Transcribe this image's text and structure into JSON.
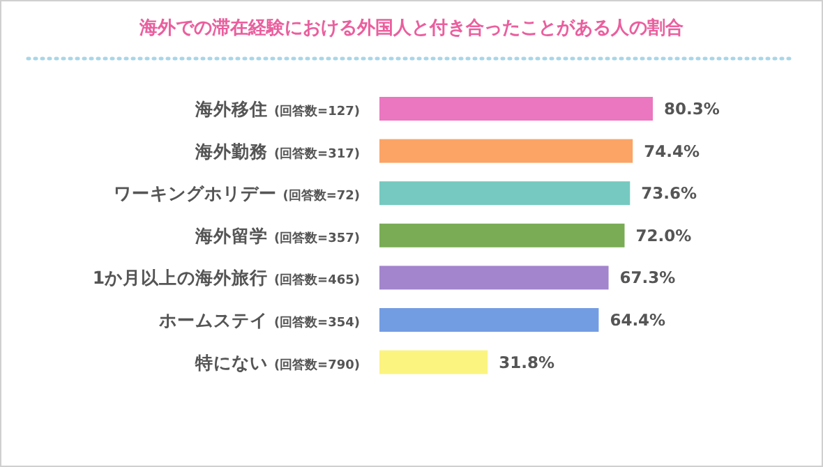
{
  "chart_data": {
    "type": "bar",
    "orientation": "horizontal",
    "title": "海外での滞在経験における外国人と付き合ったことがある人の割合",
    "categories": [
      "海外移住 (回答数=127)",
      "海外勤務 (回答数=317)",
      "ワーキングホリデー (回答数=72)",
      "海外留学 (回答数=357)",
      "1か月以上の海外旅行 (回答数=465)",
      "ホームステイ (回答数=354)",
      "特にない (回答数=790)"
    ],
    "values": [
      80.3,
      74.4,
      73.6,
      72.0,
      67.3,
      64.4,
      31.8
    ],
    "value_labels": [
      "80.3%",
      "74.4%",
      "73.6%",
      "72.0%",
      "67.3%",
      "64.4%",
      "31.8%"
    ],
    "colors": [
      "#ea77bf",
      "#fba465",
      "#76c9c0",
      "#79ac55",
      "#a285cc",
      "#739de3",
      "#fbf47f"
    ]
  }
}
